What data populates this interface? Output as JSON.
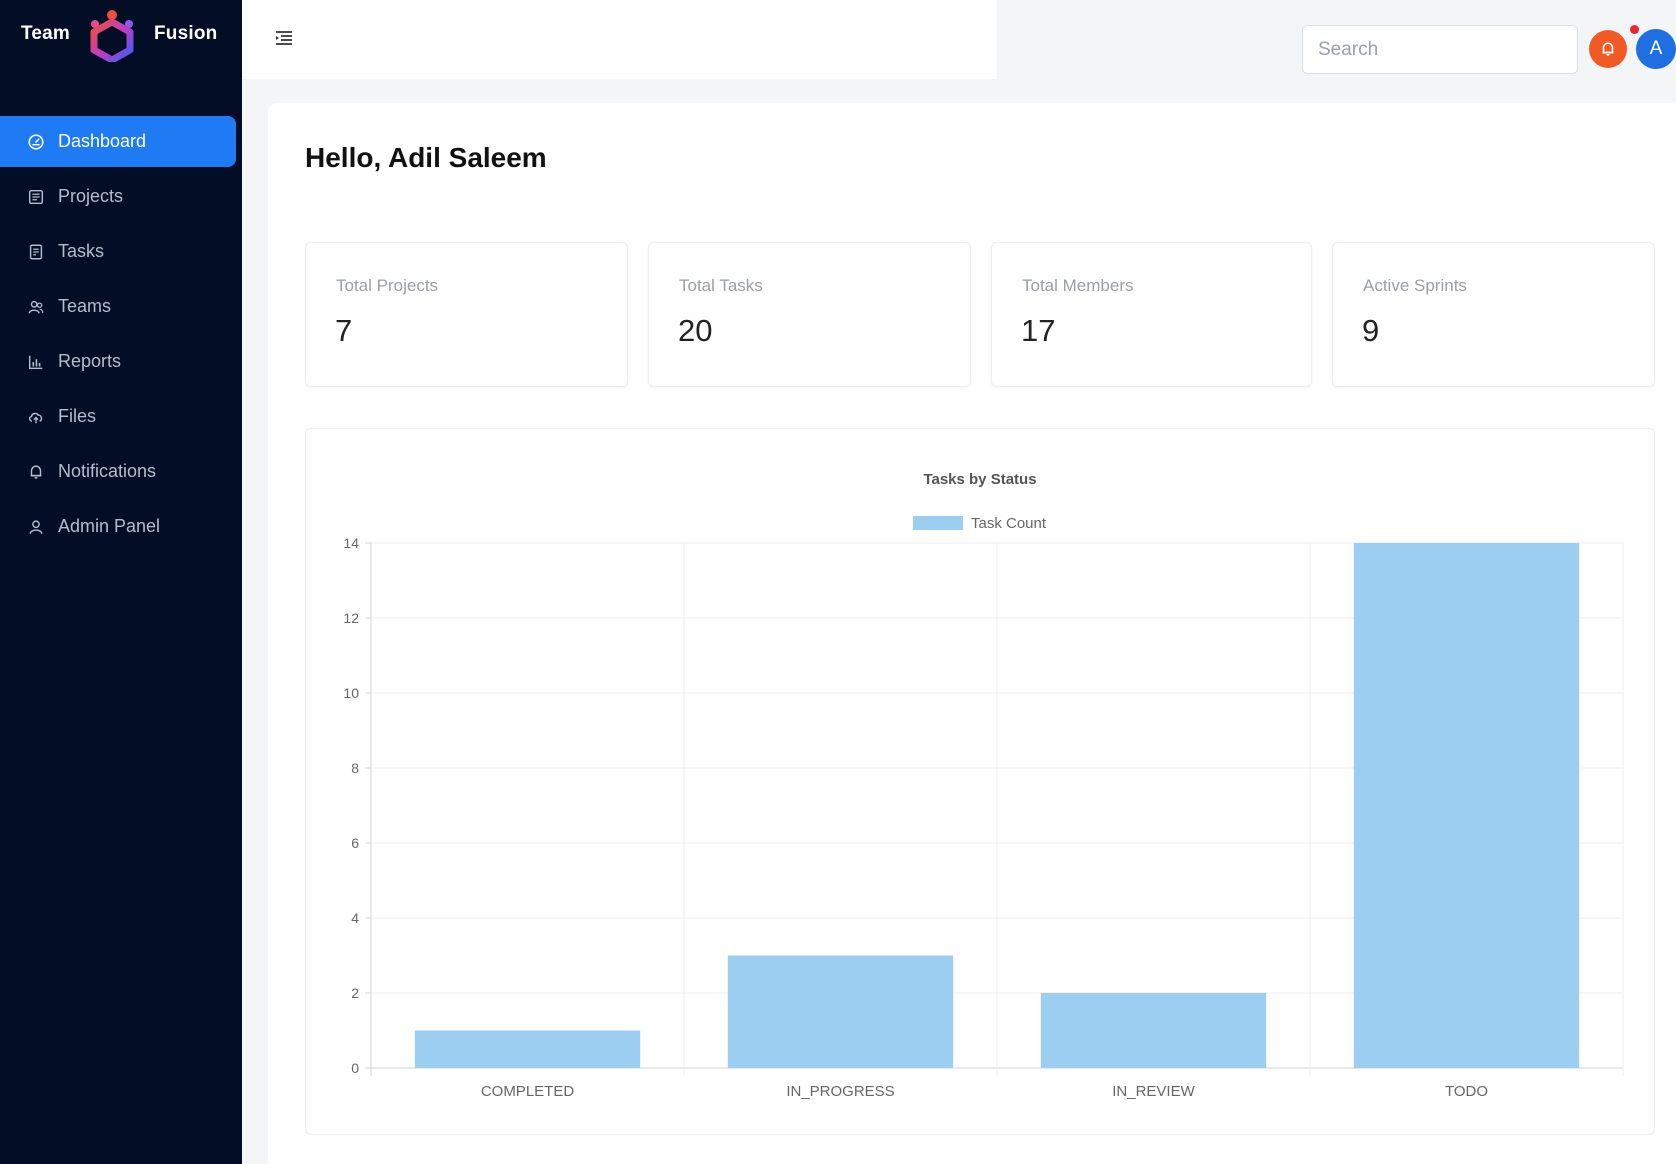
{
  "brand": {
    "left": "Team",
    "right": "Fusion"
  },
  "sidebar": {
    "items": [
      {
        "label": "Dashboard",
        "icon": "dashboard-icon",
        "active": true
      },
      {
        "label": "Projects",
        "icon": "projects-icon"
      },
      {
        "label": "Tasks",
        "icon": "tasks-icon"
      },
      {
        "label": "Teams",
        "icon": "teams-icon"
      },
      {
        "label": "Reports",
        "icon": "reports-icon"
      },
      {
        "label": "Files",
        "icon": "files-icon"
      },
      {
        "label": "Notifications",
        "icon": "bell-icon"
      },
      {
        "label": "Admin Panel",
        "icon": "user-icon"
      }
    ]
  },
  "header": {
    "search_placeholder": "Search",
    "avatar_initial": "A"
  },
  "main": {
    "greeting": "Hello, Adil Saleem",
    "stats": [
      {
        "label": "Total Projects",
        "value": "7"
      },
      {
        "label": "Total Tasks",
        "value": "20"
      },
      {
        "label": "Total Members",
        "value": "17"
      },
      {
        "label": "Active Sprints",
        "value": "9"
      }
    ]
  },
  "colors": {
    "sidebar_bg": "#030d26",
    "accent": "#1e7bf3",
    "bar": "#9ccef2",
    "bell": "#f15a24"
  },
  "chart_data": {
    "type": "bar",
    "title": "Tasks by Status",
    "categories": [
      "COMPLETED",
      "IN_PROGRESS",
      "IN_REVIEW",
      "TODO"
    ],
    "series": [
      {
        "name": "Task Count",
        "values": [
          1,
          3,
          2,
          14
        ]
      }
    ],
    "yticks": [
      "0",
      "2",
      "4",
      "6",
      "8",
      "10",
      "12",
      "14"
    ],
    "ylim": [
      0,
      14
    ],
    "grid": true,
    "legend": "top-center"
  }
}
